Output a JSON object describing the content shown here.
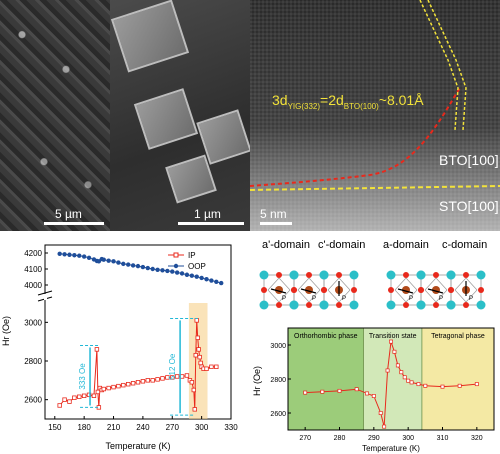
{
  "images": {
    "sem1_scale": "5 µm",
    "sem2_scale": "1 µm",
    "tem_scale": "5 nm",
    "tem_equation": "3d",
    "tem_eq_sub1": "YIG(332)",
    "tem_eq_mid": "=2d",
    "tem_eq_sub2": "BTO(100)",
    "tem_eq_end": "~8.01Å",
    "label_bto": "BTO[100]",
    "label_sto": "STO[100]"
  },
  "schematic": {
    "labels": [
      "a'-domain",
      "c'-domain",
      "a-domain",
      "c-domain"
    ],
    "p_label": "P"
  },
  "colors": {
    "ip": "#e8291c",
    "oop": "#1f4e9a",
    "cyan": "#21b8d6",
    "green_phase": "#9ccc7a",
    "yellow_phase": "#f4e9a4",
    "band": "#f6d08a"
  },
  "chart_data": [
    {
      "type": "line",
      "xlabel": "Temperature (K)",
      "ylabel": "Hr (Oe)",
      "x_ticks": [
        "150",
        "180",
        "210",
        "240",
        "270",
        "300",
        "330"
      ],
      "y_ticks_lower": [
        "2600",
        "2800",
        "3000"
      ],
      "y_ticks_upper": [
        "4000",
        "4100",
        "4200"
      ],
      "annotations": [
        "333 Oe",
        "512 Oe"
      ],
      "series": [
        {
          "name": "IP",
          "x": [
            155,
            160,
            165,
            170,
            175,
            180,
            185,
            190,
            193,
            194,
            195,
            196,
            198,
            200,
            205,
            210,
            215,
            220,
            225,
            230,
            235,
            240,
            245,
            250,
            255,
            260,
            265,
            270,
            275,
            280,
            285,
            288,
            290,
            292,
            293,
            294,
            295,
            296,
            297,
            298,
            299,
            300,
            302,
            305,
            310,
            315
          ],
          "y": [
            2570,
            2600,
            2590,
            2610,
            2615,
            2620,
            2625,
            2620,
            2860,
            2640,
            2560,
            2660,
            2650,
            2655,
            2660,
            2665,
            2670,
            2675,
            2680,
            2685,
            2690,
            2695,
            2700,
            2700,
            2705,
            2710,
            2715,
            2715,
            2720,
            2720,
            2725,
            2700,
            2690,
            2650,
            2550,
            2830,
            3010,
            2920,
            2860,
            2820,
            2790,
            2770,
            2760,
            2760,
            2770,
            2770
          ]
        },
        {
          "name": "OOP",
          "x": [
            155,
            160,
            165,
            170,
            175,
            180,
            185,
            190,
            193,
            195,
            198,
            200,
            205,
            210,
            215,
            220,
            225,
            230,
            235,
            240,
            245,
            250,
            255,
            260,
            265,
            270,
            275,
            280,
            285,
            290,
            295,
            300,
            305,
            310,
            315,
            320
          ],
          "y": [
            4195,
            4192,
            4189,
            4186,
            4183,
            4178,
            4170,
            4160,
            4150,
            4148,
            4162,
            4158,
            4152,
            4148,
            4140,
            4132,
            4128,
            4122,
            4118,
            4112,
            4106,
            4100,
            4095,
            4092,
            4088,
            4084,
            4078,
            4072,
            4064,
            4058,
            4052,
            4044,
            4036,
            4028,
            4020,
            4012
          ]
        }
      ]
    },
    {
      "type": "line",
      "xlabel": "Temperature (K)",
      "ylabel": "Hr (Oe)",
      "x_ticks": [
        "270",
        "280",
        "290",
        "300",
        "310",
        "320"
      ],
      "y_ticks": [
        "2600",
        "2800",
        "3000"
      ],
      "ylim": [
        2500,
        3100
      ],
      "xlim": [
        265,
        325
      ],
      "phases": [
        "Orthorhombic phase",
        "Transition state",
        "Tetragonal phase"
      ],
      "series": [
        {
          "name": "IP",
          "x": [
            270,
            275,
            280,
            285,
            288,
            290,
            292,
            293,
            294,
            295,
            296,
            297,
            298,
            299,
            300,
            301,
            303,
            305,
            310,
            315,
            320
          ],
          "y": [
            2720,
            2725,
            2730,
            2740,
            2715,
            2700,
            2600,
            2520,
            2850,
            3020,
            2960,
            2880,
            2840,
            2810,
            2790,
            2780,
            2770,
            2760,
            2755,
            2760,
            2770
          ]
        }
      ]
    }
  ]
}
